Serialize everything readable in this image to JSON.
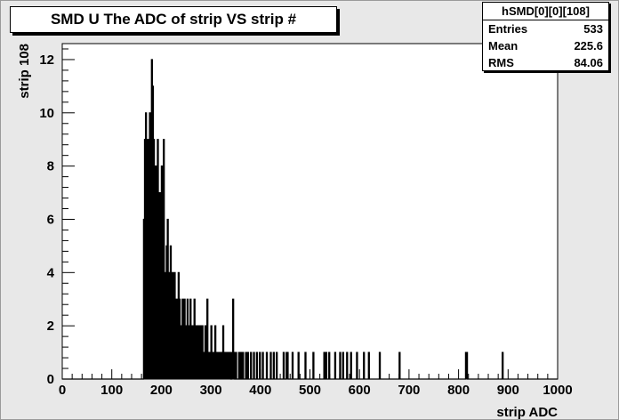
{
  "title": "SMD U The ADC of strip VS strip #",
  "stats": {
    "name": "hSMD[0][0][108]",
    "rows": [
      {
        "label": "Entries",
        "value": "533"
      },
      {
        "label": "Mean",
        "value": "225.6"
      },
      {
        "label": "RMS",
        "value": "84.06"
      }
    ]
  },
  "chart_data": {
    "type": "bar",
    "title": "SMD U The ADC of strip VS strip #",
    "xlabel": "strip ADC",
    "ylabel": "strip 108",
    "xlim": [
      0,
      1000
    ],
    "ylim": [
      0,
      12.6
    ],
    "bin_width": 2,
    "xticks": [
      "0",
      "100",
      "200",
      "300",
      "400",
      "500",
      "600",
      "700",
      "800",
      "900",
      "1000"
    ],
    "yticks": [
      "0",
      "2",
      "4",
      "6",
      "8",
      "10",
      "12"
    ],
    "bins": [
      [
        164,
        6
      ],
      [
        166,
        9
      ],
      [
        168,
        10
      ],
      [
        170,
        3
      ],
      [
        172,
        9
      ],
      [
        174,
        7
      ],
      [
        176,
        10
      ],
      [
        178,
        8
      ],
      [
        180,
        12
      ],
      [
        182,
        11
      ],
      [
        184,
        9
      ],
      [
        186,
        6
      ],
      [
        188,
        8
      ],
      [
        190,
        5
      ],
      [
        192,
        9
      ],
      [
        194,
        7
      ],
      [
        196,
        5
      ],
      [
        198,
        7
      ],
      [
        200,
        8
      ],
      [
        202,
        6
      ],
      [
        204,
        9
      ],
      [
        206,
        4
      ],
      [
        208,
        2
      ],
      [
        210,
        5
      ],
      [
        212,
        6
      ],
      [
        214,
        3
      ],
      [
        216,
        4
      ],
      [
        218,
        5
      ],
      [
        220,
        2
      ],
      [
        222,
        4
      ],
      [
        224,
        3
      ],
      [
        226,
        4
      ],
      [
        228,
        2
      ],
      [
        230,
        3
      ],
      [
        232,
        1
      ],
      [
        234,
        4
      ],
      [
        236,
        3
      ],
      [
        238,
        2
      ],
      [
        240,
        1
      ],
      [
        242,
        3
      ],
      [
        244,
        2
      ],
      [
        246,
        3
      ],
      [
        248,
        2
      ],
      [
        250,
        1
      ],
      [
        252,
        3
      ],
      [
        254,
        2
      ],
      [
        256,
        1
      ],
      [
        258,
        3
      ],
      [
        260,
        2
      ],
      [
        262,
        1
      ],
      [
        264,
        2
      ],
      [
        266,
        3
      ],
      [
        268,
        1
      ],
      [
        270,
        2
      ],
      [
        272,
        1
      ],
      [
        274,
        2
      ],
      [
        276,
        1
      ],
      [
        278,
        2
      ],
      [
        280,
        1
      ],
      [
        282,
        2
      ],
      [
        284,
        1
      ],
      [
        286,
        1
      ],
      [
        288,
        2
      ],
      [
        290,
        1
      ],
      [
        292,
        3
      ],
      [
        294,
        1
      ],
      [
        296,
        1
      ],
      [
        298,
        1
      ],
      [
        300,
        2
      ],
      [
        302,
        1
      ],
      [
        304,
        1
      ],
      [
        306,
        1
      ],
      [
        308,
        2
      ],
      [
        310,
        1
      ],
      [
        312,
        1
      ],
      [
        314,
        1
      ],
      [
        316,
        1
      ],
      [
        318,
        1
      ],
      [
        320,
        1
      ],
      [
        322,
        1
      ],
      [
        324,
        2
      ],
      [
        326,
        1
      ],
      [
        328,
        1
      ],
      [
        330,
        1
      ],
      [
        332,
        1
      ],
      [
        334,
        1
      ],
      [
        336,
        1
      ],
      [
        338,
        1
      ],
      [
        342,
        1
      ],
      [
        344,
        3
      ],
      [
        346,
        1
      ],
      [
        350,
        1
      ],
      [
        356,
        1
      ],
      [
        360,
        1
      ],
      [
        364,
        1
      ],
      [
        370,
        1
      ],
      [
        374,
        1
      ],
      [
        380,
        1
      ],
      [
        386,
        1
      ],
      [
        392,
        1
      ],
      [
        398,
        1
      ],
      [
        404,
        1
      ],
      [
        412,
        1
      ],
      [
        420,
        1
      ],
      [
        426,
        1
      ],
      [
        432,
        1
      ],
      [
        446,
        1
      ],
      [
        452,
        1
      ],
      [
        454,
        1
      ],
      [
        464,
        1
      ],
      [
        476,
        1
      ],
      [
        490,
        1
      ],
      [
        506,
        1
      ],
      [
        528,
        1
      ],
      [
        532,
        1
      ],
      [
        538,
        1
      ],
      [
        550,
        1
      ],
      [
        560,
        1
      ],
      [
        566,
        1
      ],
      [
        574,
        1
      ],
      [
        582,
        1
      ],
      [
        594,
        1
      ],
      [
        608,
        1
      ],
      [
        618,
        1
      ],
      [
        640,
        1
      ],
      [
        680,
        1
      ],
      [
        814,
        1
      ],
      [
        816,
        1
      ],
      [
        888,
        1
      ]
    ]
  }
}
